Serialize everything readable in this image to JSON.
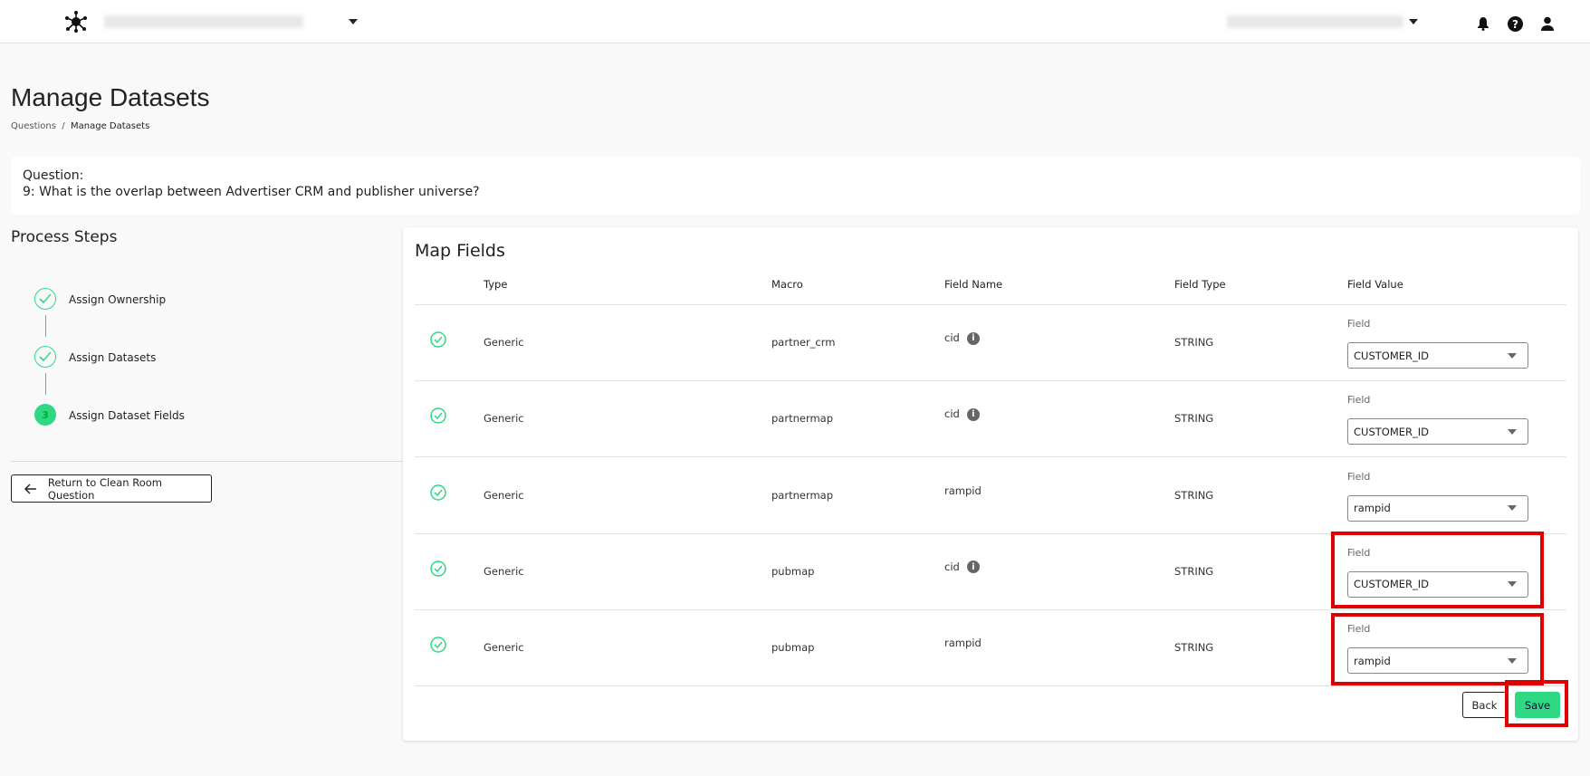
{
  "header": {
    "icons": [
      "network-logo-icon",
      "bell-icon",
      "help-icon",
      "user-icon"
    ]
  },
  "page": {
    "title": "Manage Datasets",
    "breadcrumb": [
      "Questions",
      "Manage Datasets"
    ]
  },
  "question": {
    "label": "Question:",
    "text": "9: What is the overlap between Advertiser CRM and publisher universe?"
  },
  "process": {
    "title": "Process Steps",
    "steps": [
      {
        "label": "Assign Ownership",
        "status": "complete"
      },
      {
        "label": "Assign Datasets",
        "status": "complete"
      },
      {
        "label": "Assign Dataset Fields",
        "status": "active",
        "number": "3"
      }
    ],
    "return_label": "Return to Clean Room Question"
  },
  "map": {
    "title": "Map Fields",
    "columns": [
      "Type",
      "Macro",
      "Field Name",
      "Field Type",
      "Field Value"
    ],
    "rows": [
      {
        "type": "Generic",
        "macro": "partner_crm",
        "field_name": "cid",
        "info": true,
        "field_type": "STRING",
        "field_label": "Field",
        "value": "CUSTOMER_ID"
      },
      {
        "type": "Generic",
        "macro": "partnermap",
        "field_name": "cid",
        "info": true,
        "field_type": "STRING",
        "field_label": "Field",
        "value": "CUSTOMER_ID"
      },
      {
        "type": "Generic",
        "macro": "partnermap",
        "field_name": "rampid",
        "info": false,
        "field_type": "STRING",
        "field_label": "Field",
        "value": "rampid"
      },
      {
        "type": "Generic",
        "macro": "pubmap",
        "field_name": "cid",
        "info": true,
        "field_type": "STRING",
        "field_label": "Field",
        "value": "CUSTOMER_ID"
      },
      {
        "type": "Generic",
        "macro": "pubmap",
        "field_name": "rampid",
        "info": false,
        "field_type": "STRING",
        "field_label": "Field",
        "value": "rampid"
      }
    ],
    "info_glyph": "i",
    "back_label": "Back",
    "save_label": "Save"
  },
  "colors": {
    "accent": "#2fd883",
    "highlight": "#e00000"
  }
}
